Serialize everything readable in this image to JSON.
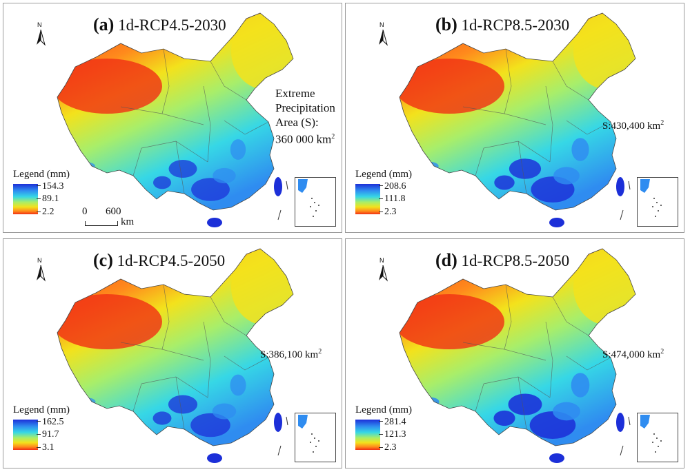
{
  "panels": [
    {
      "letter": "(a)",
      "scenario": "1d-RCP4.5-2030",
      "legend_title": "Legend (mm)",
      "legend_max": "154.3",
      "legend_mid": "89.1",
      "legend_min": "2.2",
      "area_lines": [
        "Extreme",
        "Precipitation",
        "Area (S):",
        "360 000 km"
      ],
      "area_sup": "2",
      "scale_zero": "0",
      "scale_dist": "600",
      "scale_unit": "km",
      "wet_level": 0.55
    },
    {
      "letter": "(b)",
      "scenario": "1d-RCP8.5-2030",
      "legend_title": "Legend (mm)",
      "legend_max": "208.6",
      "legend_mid": "111.8",
      "legend_min": "2.3",
      "area_text": "S:430,400 km",
      "area_sup": "2",
      "wet_level": 0.75
    },
    {
      "letter": "(c)",
      "scenario": "1d-RCP4.5-2050",
      "legend_title": "Legend (mm)",
      "legend_max": "162.5",
      "legend_mid": "91.7",
      "legend_min": "3.1",
      "area_text": "S:386,100 km",
      "area_sup": "2",
      "wet_level": 0.6
    },
    {
      "letter": "(d)",
      "scenario": "1d-RCP8.5-2050",
      "legend_title": "Legend (mm)",
      "legend_max": "281.4",
      "legend_mid": "121.3",
      "legend_min": "2.3",
      "area_text": "S:474,000 km",
      "area_sup": "2",
      "wet_level": 0.85
    }
  ],
  "north_label": "N",
  "colors": {
    "dry": "#f03014",
    "orange": "#ff8a1c",
    "yellow": "#f3e21c",
    "green": "#a8ee6a",
    "cyan": "#36d7e6",
    "blue": "#2f8cf0",
    "wet": "#1c2fd8"
  }
}
